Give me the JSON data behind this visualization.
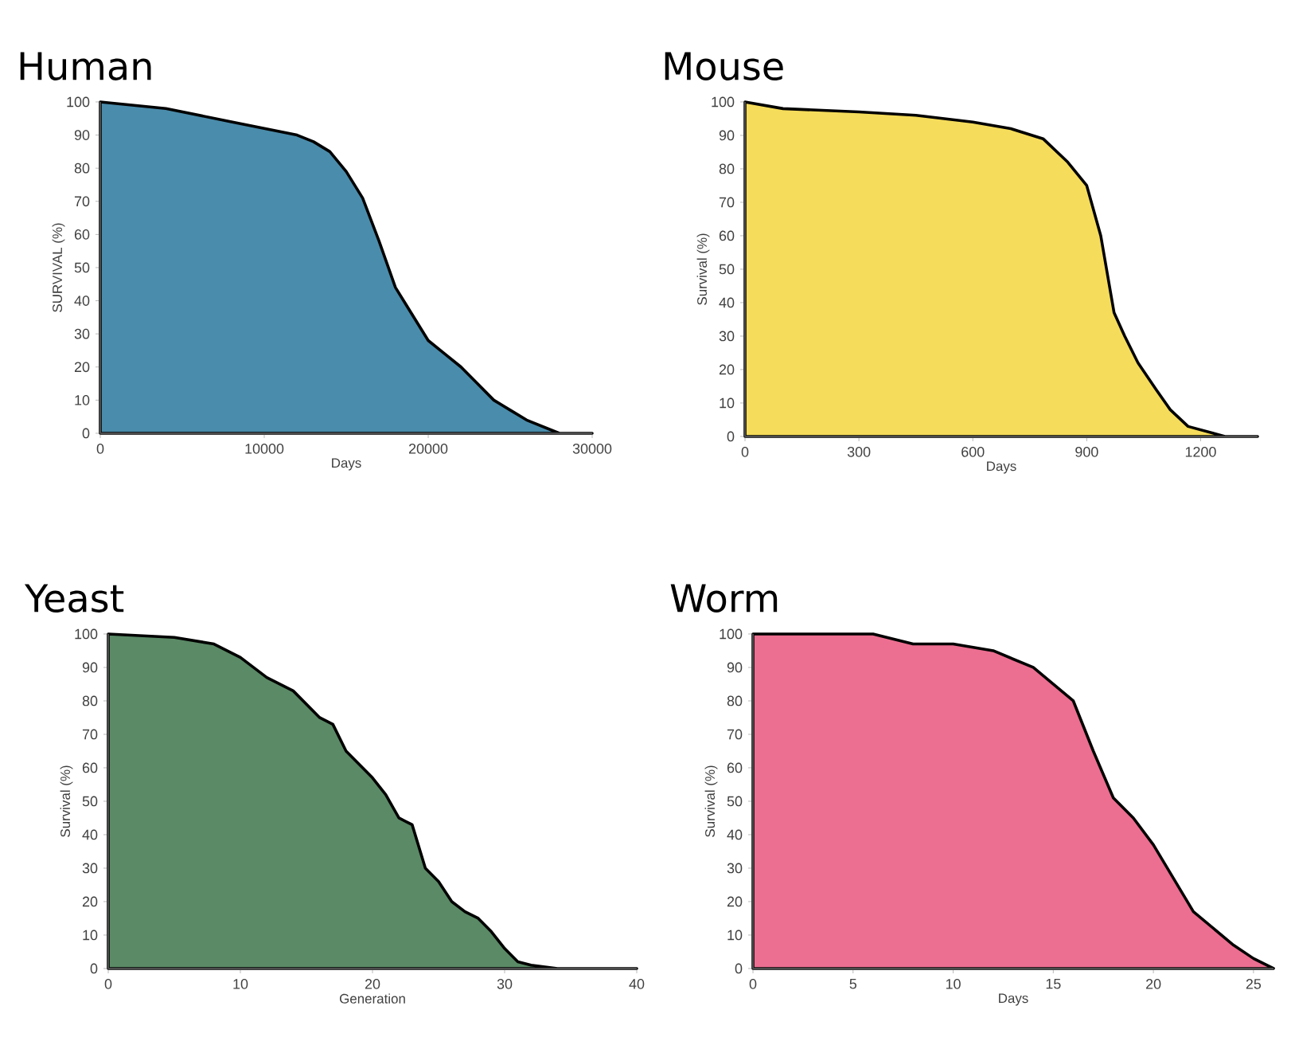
{
  "chart_data": [
    {
      "type": "area",
      "title": "Human",
      "xlabel": "Days",
      "ylabel": "SURVIVAL (%)",
      "color": "#4a8cab",
      "xlim": [
        0,
        30000
      ],
      "ylim": [
        0,
        100
      ],
      "xticks": [
        0,
        10000,
        20000,
        30000
      ],
      "yticks": [
        0,
        10,
        20,
        30,
        40,
        50,
        60,
        70,
        80,
        90,
        100
      ],
      "x": [
        0,
        4000,
        6000,
        8000,
        10000,
        12000,
        13000,
        14000,
        15000,
        16000,
        17000,
        18000,
        19000,
        20000,
        21000,
        22000,
        23000,
        24000,
        25000,
        26000,
        27000,
        28000,
        30000
      ],
      "values": [
        100,
        98,
        96,
        94,
        92,
        90,
        88,
        85,
        79,
        71,
        58,
        44,
        36,
        28,
        24,
        20,
        15,
        10,
        7,
        4,
        2,
        0,
        0
      ]
    },
    {
      "type": "area",
      "title": "Mouse",
      "xlabel": "Days",
      "ylabel": "Survival (%)",
      "color": "#f5dc5a",
      "xlim": [
        0,
        1350
      ],
      "ylim": [
        0,
        100
      ],
      "xticks": [
        0,
        300,
        600,
        900,
        1200
      ],
      "yticks": [
        0,
        10,
        20,
        30,
        40,
        50,
        60,
        70,
        80,
        90,
        100
      ],
      "x": [
        0,
        100,
        300,
        450,
        600,
        700,
        785,
        850,
        900,
        937,
        972,
        1000,
        1035,
        1083,
        1120,
        1167,
        1264,
        1350
      ],
      "values": [
        100,
        98,
        97,
        96,
        94,
        92,
        89,
        82,
        75,
        60,
        37,
        30,
        22,
        14,
        8,
        3,
        0,
        0
      ]
    },
    {
      "type": "area",
      "title": "Yeast",
      "xlabel": "Generation",
      "ylabel": "Survival (%)",
      "color": "#5a8a66",
      "xlim": [
        0,
        40
      ],
      "ylim": [
        0,
        100
      ],
      "xticks": [
        0,
        10,
        20,
        30,
        40
      ],
      "yticks": [
        0,
        10,
        20,
        30,
        40,
        50,
        60,
        70,
        80,
        90,
        100
      ],
      "x": [
        0,
        5,
        8,
        10,
        12,
        14,
        16,
        17,
        18,
        19,
        20,
        21,
        22,
        23,
        24,
        25,
        26,
        27,
        28,
        29,
        30,
        31,
        32,
        34,
        40
      ],
      "values": [
        100,
        99,
        97,
        93,
        87,
        83,
        75,
        73,
        65,
        61,
        57,
        52,
        45,
        43,
        30,
        26,
        20,
        17,
        15,
        11,
        6,
        2,
        1,
        0,
        0
      ]
    },
    {
      "type": "area",
      "title": "Worm",
      "xlabel": "Days",
      "ylabel": "Survival (%)",
      "color": "#ec6e90",
      "xlim": [
        0,
        26
      ],
      "ylim": [
        0,
        100
      ],
      "xticks": [
        0,
        5,
        10,
        15,
        20,
        25
      ],
      "yticks": [
        0,
        10,
        20,
        30,
        40,
        50,
        60,
        70,
        80,
        90,
        100
      ],
      "x": [
        0,
        3,
        6,
        8,
        10,
        12,
        14,
        15,
        16,
        17,
        18,
        19,
        20,
        21,
        22,
        23,
        24,
        25,
        26
      ],
      "values": [
        100,
        100,
        100,
        97,
        97,
        95,
        90,
        85,
        80,
        65,
        51,
        45,
        37,
        27,
        17,
        12,
        7,
        3,
        0
      ]
    }
  ]
}
